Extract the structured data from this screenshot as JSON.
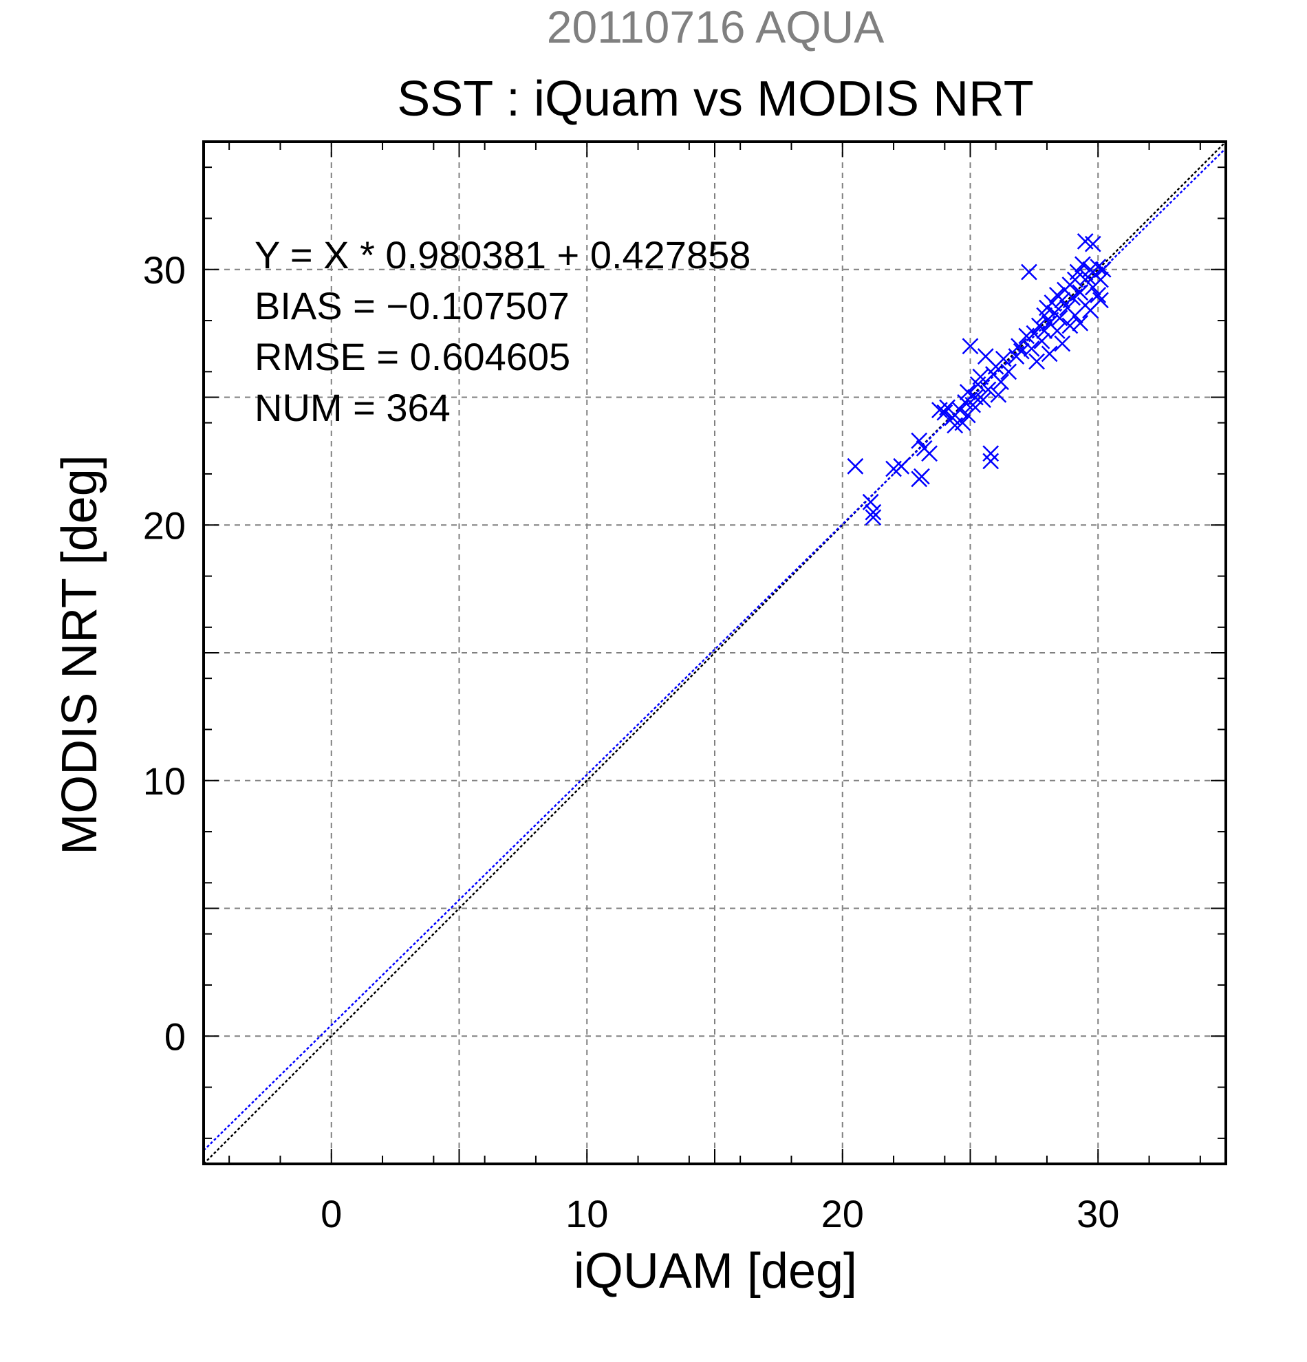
{
  "chart_data": {
    "type": "scatter",
    "supertitle": "20110716 AQUA",
    "title": "SST : iQuam vs MODIS NRT",
    "xlabel": "iQUAM [deg]",
    "ylabel": "MODIS NRT [deg]",
    "xlim": [
      -5,
      35
    ],
    "ylim": [
      -5,
      35
    ],
    "xticks": [
      0,
      10,
      20,
      30
    ],
    "yticks": [
      0,
      10,
      20,
      30
    ],
    "xtick_labels": [
      "0",
      "10",
      "20",
      "30"
    ],
    "ytick_labels": [
      "0",
      "10",
      "20",
      "30"
    ],
    "grid": true,
    "marker": "x",
    "colors": {
      "points": "#0000ff",
      "fit_line": "#0000ff",
      "one_to_one": "#000000",
      "supertitle": "#808080"
    },
    "stats": {
      "equation": "Y = X * 0.980381 + 0.427858",
      "bias": "BIAS = −0.107507",
      "rmse": "RMSE = 0.604605",
      "num": "NUM = 364"
    },
    "fit": {
      "slope": 0.980381,
      "intercept": 0.427858
    },
    "points": [
      [
        20.5,
        22.3
      ],
      [
        21.2,
        20.3
      ],
      [
        21.2,
        20.5
      ],
      [
        21.1,
        20.9
      ],
      [
        22.0,
        22.2
      ],
      [
        22.3,
        22.3
      ],
      [
        23.0,
        21.8
      ],
      [
        23.1,
        21.9
      ],
      [
        23.0,
        23.3
      ],
      [
        23.2,
        23.0
      ],
      [
        23.4,
        22.8
      ],
      [
        23.8,
        24.5
      ],
      [
        24.0,
        24.4
      ],
      [
        24.1,
        24.6
      ],
      [
        24.3,
        24.2
      ],
      [
        24.4,
        23.9
      ],
      [
        24.6,
        24.5
      ],
      [
        24.7,
        24.0
      ],
      [
        24.8,
        24.8
      ],
      [
        24.9,
        24.3
      ],
      [
        24.9,
        25.2
      ],
      [
        25.0,
        27.0
      ],
      [
        25.1,
        24.7
      ],
      [
        25.2,
        25.0
      ],
      [
        25.3,
        25.5
      ],
      [
        25.4,
        25.8
      ],
      [
        25.5,
        24.9
      ],
      [
        25.6,
        26.6
      ],
      [
        25.7,
        25.3
      ],
      [
        25.8,
        22.8
      ],
      [
        25.8,
        22.5
      ],
      [
        25.9,
        25.9
      ],
      [
        26.0,
        26.2
      ],
      [
        26.1,
        25.1
      ],
      [
        26.2,
        25.6
      ],
      [
        26.3,
        26.5
      ],
      [
        26.5,
        26.0
      ],
      [
        26.8,
        26.6
      ],
      [
        26.9,
        27.0
      ],
      [
        27.0,
        26.8
      ],
      [
        27.2,
        27.4
      ],
      [
        27.3,
        29.9
      ],
      [
        27.4,
        26.9
      ],
      [
        27.5,
        27.5
      ],
      [
        27.6,
        26.4
      ],
      [
        27.7,
        27.8
      ],
      [
        27.8,
        27.2
      ],
      [
        27.9,
        28.2
      ],
      [
        27.9,
        27.6
      ],
      [
        28.0,
        28.5
      ],
      [
        28.1,
        27.9
      ],
      [
        28.1,
        26.7
      ],
      [
        28.2,
        28.7
      ],
      [
        28.3,
        28.3
      ],
      [
        28.4,
        27.6
      ],
      [
        28.4,
        29.0
      ],
      [
        28.5,
        28.1
      ],
      [
        28.6,
        28.8
      ],
      [
        28.6,
        27.1
      ],
      [
        28.7,
        29.2
      ],
      [
        28.8,
        28.5
      ],
      [
        28.9,
        27.8
      ],
      [
        28.9,
        29.4
      ],
      [
        29.0,
        28.9
      ],
      [
        29.1,
        29.6
      ],
      [
        29.1,
        28.2
      ],
      [
        29.2,
        29.9
      ],
      [
        29.3,
        29.1
      ],
      [
        29.3,
        27.9
      ],
      [
        29.4,
        30.2
      ],
      [
        29.5,
        28.6
      ],
      [
        29.5,
        31.1
      ],
      [
        29.6,
        29.7
      ],
      [
        29.7,
        30.0
      ],
      [
        29.7,
        28.4
      ],
      [
        29.8,
        31.0
      ],
      [
        29.8,
        29.3
      ],
      [
        29.9,
        29.8
      ],
      [
        30.0,
        30.1
      ],
      [
        30.0,
        29.0
      ],
      [
        30.1,
        28.8
      ],
      [
        30.1,
        29.6
      ],
      [
        30.2,
        30.0
      ]
    ]
  }
}
